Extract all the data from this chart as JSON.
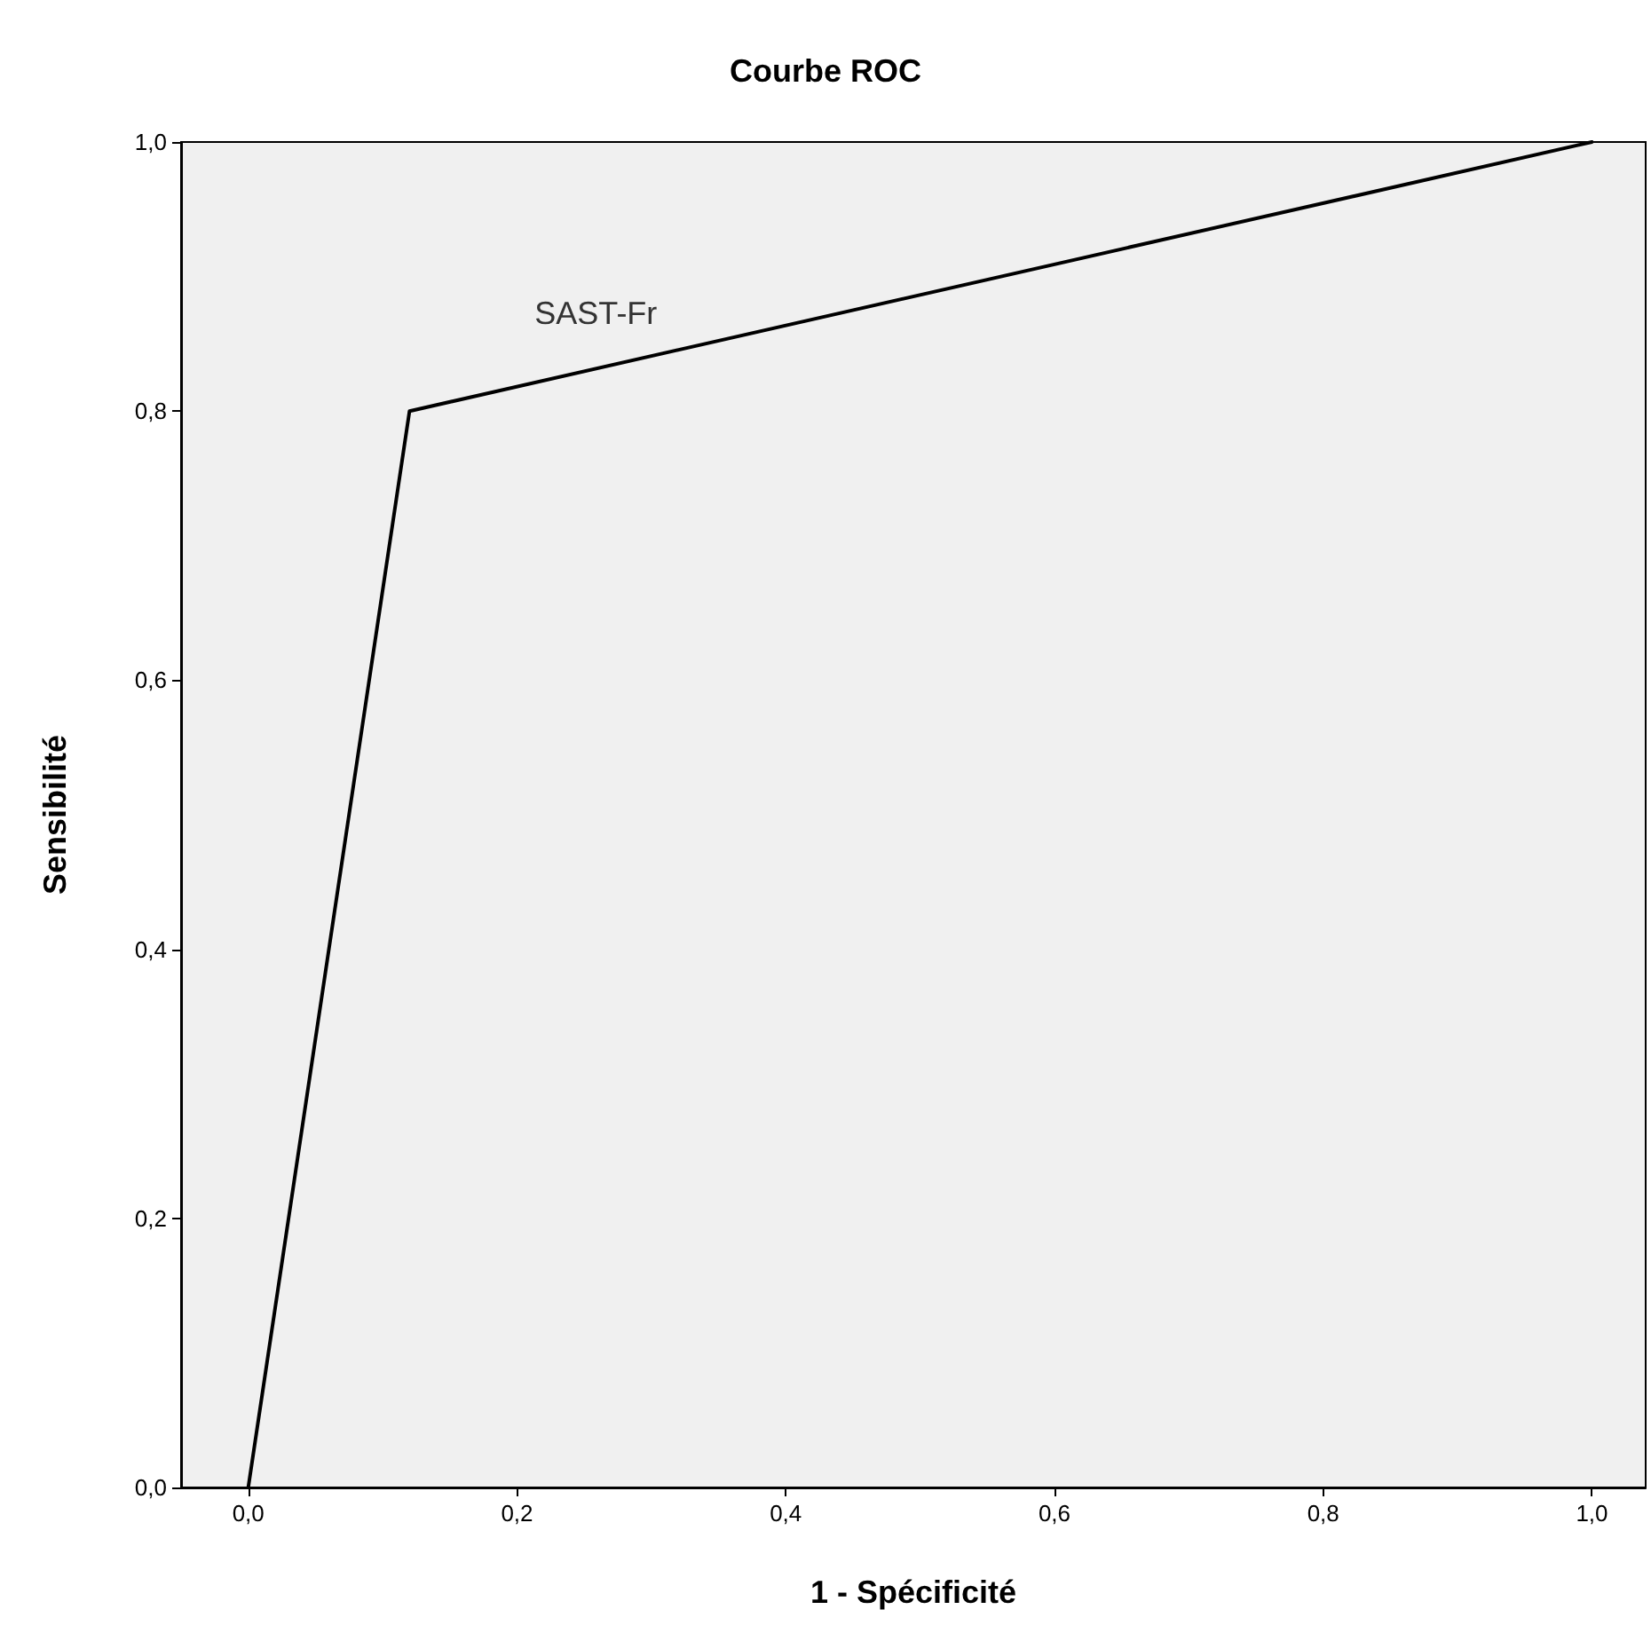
{
  "chart_data": {
    "type": "line",
    "title": "Courbe ROC",
    "xlabel": "1 - Spécificité",
    "ylabel": "Sensibilité",
    "x": [
      0,
      0.12,
      1
    ],
    "series": [
      {
        "name": "SAST-Fr",
        "color": "#000000",
        "values": [
          0,
          0.8,
          1
        ]
      }
    ],
    "xlim": [
      -0.05,
      1.04
    ],
    "xticks": [
      {
        "value": 0,
        "label": "0,0"
      },
      {
        "value": 0.2,
        "label": "0,2"
      },
      {
        "value": 0.4,
        "label": "0,4"
      },
      {
        "value": 0.6,
        "label": "0,6"
      },
      {
        "value": 0.8,
        "label": "0,8"
      },
      {
        "value": 1,
        "label": "1,0"
      }
    ],
    "ylim": [
      0,
      1
    ],
    "yticks": [
      {
        "value": 0,
        "label": "0,0"
      },
      {
        "value": 0.2,
        "label": "0,2"
      },
      {
        "value": 0.4,
        "label": "0,4"
      },
      {
        "value": 0.6,
        "label": "0,6"
      },
      {
        "value": 0.8,
        "label": "0,8"
      },
      {
        "value": 1,
        "label": "1,0"
      }
    ],
    "grid": false,
    "legend": false,
    "marker": "none",
    "line_style": "solid"
  }
}
